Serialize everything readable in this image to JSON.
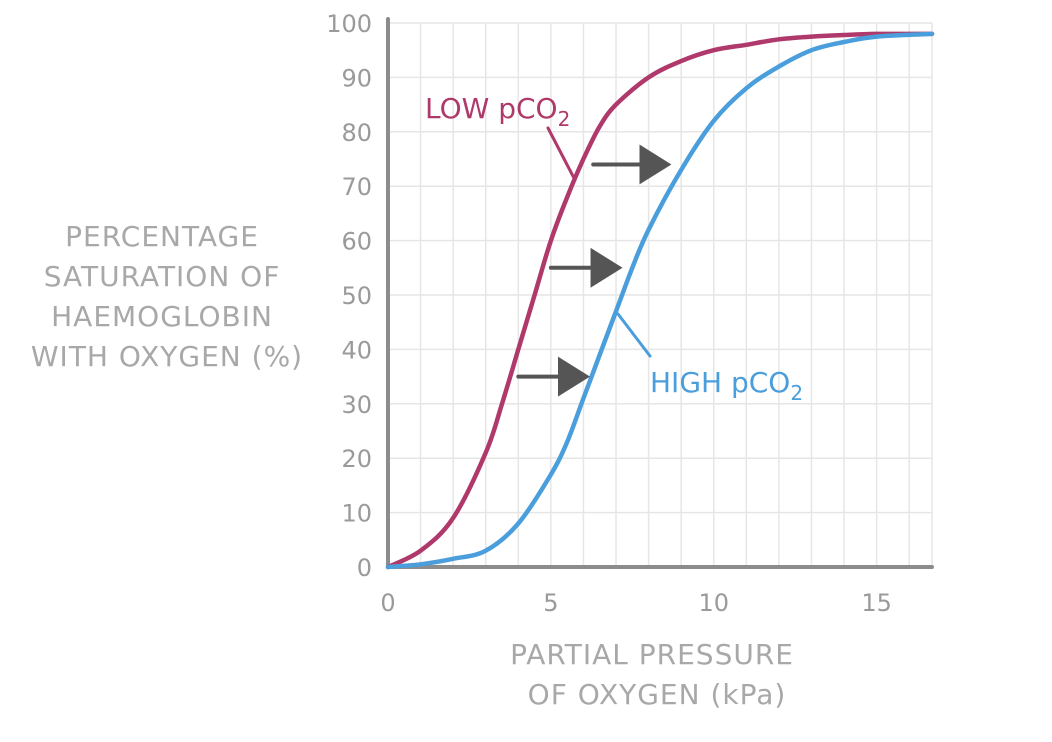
{
  "chart_data": {
    "type": "line",
    "xlabel": [
      "PARTIAL PRESSURE",
      "OF OXYGEN (kPa)"
    ],
    "ylabel": [
      "PERCENTAGE",
      "SATURATION OF",
      "HAEMOGLOBIN",
      "WITH OXYGEN (%)"
    ],
    "xlim": [
      0,
      16.7
    ],
    "ylim": [
      0,
      100
    ],
    "xticks": [
      0,
      5,
      10,
      15
    ],
    "yticks": [
      0,
      10,
      20,
      30,
      40,
      50,
      60,
      70,
      80,
      90,
      100
    ],
    "grid": true,
    "series": [
      {
        "name": "LOW pCO",
        "subscript": "2",
        "color": "#b0396b",
        "x": [
          0,
          1,
          2,
          3,
          3.5,
          4,
          4.5,
          5,
          5.5,
          6,
          6.5,
          7,
          8,
          9,
          10,
          11,
          12,
          13,
          14,
          15,
          16.7
        ],
        "y": [
          0,
          3,
          9,
          21,
          30,
          40,
          50,
          60,
          68,
          75,
          81,
          85,
          90,
          93,
          95,
          96,
          97,
          97.5,
          97.8,
          98,
          98
        ]
      },
      {
        "name": "HIGH pCO",
        "subscript": "2",
        "color": "#4a9edb",
        "x": [
          0,
          1,
          2,
          3,
          4,
          5,
          5.5,
          6,
          6.5,
          7,
          7.5,
          8,
          9,
          10,
          11,
          12,
          13,
          14,
          15,
          16.7
        ],
        "y": [
          0,
          0.5,
          1.5,
          3,
          8,
          17,
          23,
          31,
          39,
          47,
          55,
          62,
          73,
          82,
          88,
          92,
          95,
          96.5,
          97.5,
          98
        ]
      }
    ],
    "annotations": [
      {
        "type": "arrow",
        "from": [
          6.3,
          74
        ],
        "to": [
          8.7,
          74
        ],
        "color": "#555555"
      },
      {
        "type": "arrow",
        "from": [
          5.0,
          55
        ],
        "to": [
          7.2,
          55
        ],
        "color": "#555555"
      },
      {
        "type": "arrow",
        "from": [
          4.0,
          35
        ],
        "to": [
          6.2,
          35
        ],
        "color": "#555555"
      }
    ]
  }
}
